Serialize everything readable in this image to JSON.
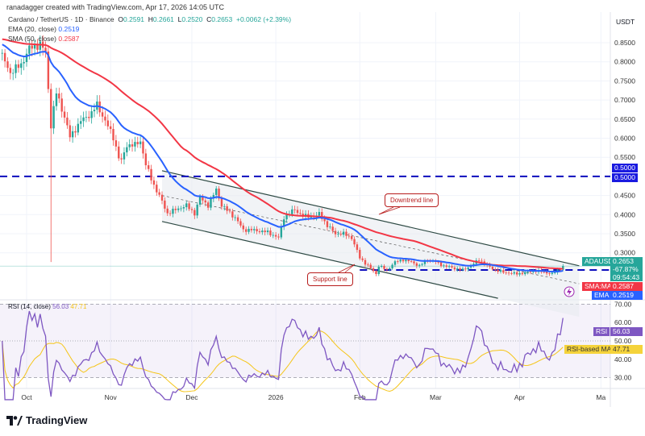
{
  "header": {
    "credit": "ranadagger created with TradingView.com, Apr 17, 2026 14:05 UTC"
  },
  "legend": {
    "symbol": "Cardano / TetherUS · 1D · Binance",
    "open_label": "O",
    "open": "0.2591",
    "high_label": "H",
    "high": "0.2661",
    "low_label": "L",
    "low": "0.2520",
    "close_label": "C",
    "close": "0.2653",
    "change": "+0.0062 (+2.39%)",
    "ema_label": "EMA (20, close)",
    "ema_value": "0.2519",
    "sma_label": "SMA (50, close)",
    "sma_value": "0.2587"
  },
  "axis": {
    "currency": "USDT"
  },
  "tags": {
    "hline_price": "0.5000",
    "hline_price2": "0.5000",
    "symbol": "ADAUSDT",
    "price": "0.2653",
    "change_pct": "-67.87%",
    "countdown": "09:54:43",
    "sma_label": "SMA:MA",
    "sma_value": "0.2587",
    "ema_label": "EMA",
    "ema_value": "0.2519",
    "rsi_label": "RSI",
    "rsi_value": "56.03",
    "rsi_ma_label": "RSI-based MA",
    "rsi_ma_value": "47.71"
  },
  "rsi_legend": {
    "label": "RSI (14, close)",
    "value": "56.03",
    "ma_value": "47.71"
  },
  "annotations": {
    "downtrend": "Downtrend line",
    "support": "Support line"
  },
  "footer": {
    "brand": "TradingView"
  },
  "colors": {
    "up": "#26a69a",
    "down": "#ef5350",
    "ema": "#2962ff",
    "sma": "#f23645",
    "hline": "#0d0dbd",
    "rsi": "#7e57c2",
    "rsi_ma": "#f5c518",
    "channel": "#2e4a44"
  },
  "chart_data": {
    "type": "candlestick",
    "price_axis": {
      "ticks": [
        "0.8500",
        "0.8000",
        "0.7500",
        "0.7000",
        "0.6500",
        "0.6000",
        "0.5500",
        "0.4500",
        "0.4000",
        "0.3500",
        "0.3000"
      ],
      "range": [
        0.18,
        0.89
      ]
    },
    "time_axis": {
      "ticks": [
        {
          "label": "Oct",
          "date": "2025-10-01"
        },
        {
          "label": "Nov",
          "date": "2025-11-01"
        },
        {
          "label": "Dec",
          "date": "2025-12-01"
        },
        {
          "label": "2026",
          "date": "2026-01-01"
        },
        {
          "label": "Feb",
          "date": "2026-02-01"
        },
        {
          "label": "Mar",
          "date": "2026-03-01"
        },
        {
          "label": "Apr",
          "date": "2026-04-01"
        },
        {
          "label": "Ma",
          "date": "2026-05-01"
        }
      ]
    },
    "rsi_axis": {
      "ticks": [
        "70.00",
        "60.00",
        "50.00",
        "40.00",
        "30.00"
      ]
    },
    "close_path": [
      [
        "2025-09-22",
        0.814
      ],
      [
        "2025-09-25",
        0.772
      ],
      [
        "2025-09-29",
        0.793
      ],
      [
        "2025-10-02",
        0.835
      ],
      [
        "2025-10-06",
        0.846
      ],
      [
        "2025-10-08",
        0.825
      ],
      [
        "2025-10-10",
        0.635
      ],
      [
        "2025-10-12",
        0.719
      ],
      [
        "2025-10-15",
        0.656
      ],
      [
        "2025-10-17",
        0.603
      ],
      [
        "2025-10-21",
        0.645
      ],
      [
        "2025-10-25",
        0.666
      ],
      [
        "2025-10-27",
        0.688
      ],
      [
        "2025-10-30",
        0.645
      ],
      [
        "2025-11-02",
        0.603
      ],
      [
        "2025-11-04",
        0.55
      ],
      [
        "2025-11-05",
        0.54
      ],
      [
        "2025-11-07",
        0.582
      ],
      [
        "2025-11-10",
        0.582
      ],
      [
        "2025-11-12",
        0.593
      ],
      [
        "2025-11-14",
        0.53
      ],
      [
        "2025-11-17",
        0.477
      ],
      [
        "2025-11-20",
        0.434
      ],
      [
        "2025-11-22",
        0.403
      ],
      [
        "2025-11-25",
        0.413
      ],
      [
        "2025-11-29",
        0.424
      ],
      [
        "2025-12-02",
        0.403
      ],
      [
        "2025-12-04",
        0.445
      ],
      [
        "2025-12-07",
        0.424
      ],
      [
        "2025-12-10",
        0.466
      ],
      [
        "2025-12-12",
        0.424
      ],
      [
        "2025-12-17",
        0.392
      ],
      [
        "2025-12-20",
        0.36
      ],
      [
        "2025-12-23",
        0.36
      ],
      [
        "2025-12-29",
        0.354
      ],
      [
        "2026-01-02",
        0.339
      ],
      [
        "2026-01-04",
        0.392
      ],
      [
        "2026-01-07",
        0.409
      ],
      [
        "2026-01-08",
        0.413
      ],
      [
        "2026-01-11",
        0.396
      ],
      [
        "2026-01-16",
        0.396
      ],
      [
        "2026-01-17",
        0.403
      ],
      [
        "2026-01-20",
        0.371
      ],
      [
        "2026-01-23",
        0.35
      ],
      [
        "2026-01-26",
        0.35
      ],
      [
        "2026-01-29",
        0.339
      ],
      [
        "2026-02-01",
        0.287
      ],
      [
        "2026-02-04",
        0.266
      ],
      [
        "2026-02-07",
        0.245
      ],
      [
        "2026-02-08",
        0.266
      ],
      [
        "2026-02-11",
        0.255
      ],
      [
        "2026-02-14",
        0.276
      ],
      [
        "2026-02-17",
        0.282
      ],
      [
        "2026-02-20",
        0.276
      ],
      [
        "2026-02-23",
        0.266
      ],
      [
        "2026-02-26",
        0.282
      ],
      [
        "2026-03-01",
        0.276
      ],
      [
        "2026-03-04",
        0.266
      ],
      [
        "2026-03-07",
        0.261
      ],
      [
        "2026-03-11",
        0.255
      ],
      [
        "2026-03-14",
        0.266
      ],
      [
        "2026-03-17",
        0.282
      ],
      [
        "2026-03-20",
        0.266
      ],
      [
        "2026-03-23",
        0.255
      ],
      [
        "2026-03-26",
        0.249
      ],
      [
        "2026-03-31",
        0.245
      ],
      [
        "2026-04-04",
        0.249
      ],
      [
        "2026-04-07",
        0.253
      ],
      [
        "2026-04-10",
        0.249
      ],
      [
        "2026-04-13",
        0.245
      ],
      [
        "2026-04-16",
        0.259
      ],
      [
        "2026-04-17",
        0.2653
      ]
    ],
    "crash_wick": {
      "date": "2025-10-10",
      "low": 0.276
    },
    "indicators": {
      "ema": {
        "period": 20,
        "last": 0.2519
      },
      "sma": {
        "period": 50,
        "last": 0.2587
      },
      "rsi": {
        "period": 14,
        "last": 56.03,
        "ma_last": 47.71
      }
    },
    "drawings": {
      "resistance_level": 0.5,
      "support_level": {
        "from": "2026-02-01",
        "price": 0.255
      },
      "channel_upper": [
        [
          "2025-11-20",
          0.515
        ],
        [
          "2026-04-23",
          0.266
        ]
      ],
      "channel_lower": [
        [
          "2025-11-20",
          0.382
        ],
        [
          "2026-03-24",
          0.181
        ]
      ],
      "channel_mid": [
        [
          "2025-11-20",
          0.45
        ],
        [
          "2026-04-23",
          0.219
        ]
      ]
    }
  }
}
